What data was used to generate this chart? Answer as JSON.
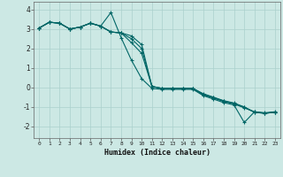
{
  "xlabel": "Humidex (Indice chaleur)",
  "background_color": "#cce8e4",
  "grid_color": "#aad0cc",
  "line_color": "#006666",
  "xlim": [
    -0.5,
    23.5
  ],
  "ylim": [
    -2.6,
    4.4
  ],
  "xticks": [
    0,
    1,
    2,
    3,
    4,
    5,
    6,
    7,
    8,
    9,
    10,
    11,
    12,
    13,
    14,
    15,
    16,
    17,
    18,
    19,
    20,
    21,
    22,
    23
  ],
  "yticks": [
    -2,
    -1,
    0,
    1,
    2,
    3,
    4
  ],
  "series": [
    [
      3.05,
      3.35,
      3.3,
      3.0,
      3.1,
      3.3,
      3.15,
      3.85,
      2.55,
      1.4,
      0.45,
      -0.05,
      -0.1,
      -0.1,
      -0.1,
      -0.1,
      -0.42,
      -0.6,
      -0.78,
      -0.9,
      -1.8,
      -1.25,
      -1.32,
      -1.28
    ],
    [
      3.05,
      3.35,
      3.3,
      3.0,
      3.1,
      3.3,
      3.15,
      2.85,
      2.8,
      2.3,
      1.75,
      0.05,
      -0.05,
      -0.05,
      -0.05,
      -0.05,
      -0.38,
      -0.55,
      -0.72,
      -0.85,
      -1.05,
      -1.25,
      -1.3,
      -1.25
    ],
    [
      3.05,
      3.35,
      3.3,
      3.0,
      3.1,
      3.3,
      3.15,
      2.85,
      2.8,
      2.5,
      2.0,
      0.05,
      -0.05,
      -0.05,
      -0.05,
      -0.05,
      -0.35,
      -0.52,
      -0.7,
      -0.82,
      -1.02,
      -1.28,
      -1.33,
      -1.27
    ],
    [
      3.05,
      3.35,
      3.3,
      3.0,
      3.1,
      3.3,
      3.15,
      2.85,
      2.8,
      2.65,
      2.2,
      0.05,
      -0.05,
      -0.05,
      -0.05,
      -0.05,
      -0.32,
      -0.5,
      -0.68,
      -0.8,
      -1.0,
      -1.27,
      -1.33,
      -1.27
    ]
  ]
}
